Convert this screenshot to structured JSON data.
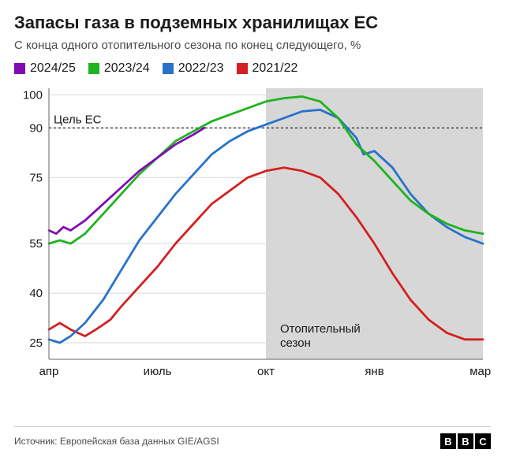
{
  "title": "Запасы газа в подземных хранилищах ЕС",
  "subtitle": "С конца одного отопительного сезона по конец следующего, %",
  "source": "Источник: Европейская база данных GIE/AGSI",
  "logo_letters": [
    "B",
    "B",
    "C"
  ],
  "legend": [
    {
      "label": "2024/25",
      "color": "#800bb5"
    },
    {
      "label": "2023/24",
      "color": "#1fb31f"
    },
    {
      "label": "2022/23",
      "color": "#2872cc"
    },
    {
      "label": "2021/22",
      "color": "#d42020"
    }
  ],
  "chart": {
    "type": "line",
    "x_domain": [
      0,
      12
    ],
    "ylim": [
      20,
      102
    ],
    "yticks": [
      25,
      40,
      55,
      75,
      90,
      100
    ],
    "ytick_labels": [
      "25",
      "40",
      "55",
      "75",
      "90",
      "100"
    ],
    "xticks": [
      0,
      3,
      6,
      9,
      12
    ],
    "xtick_labels": [
      "апр",
      "июль",
      "окт",
      "янв",
      "март"
    ],
    "target_value": 90,
    "target_label": "Цель ЕС",
    "heating_season": {
      "start": 6,
      "end": 12,
      "label": "Отопительный\nсезон",
      "fill": "#d7d7d7"
    },
    "background_color": "#ffffff",
    "grid_color": "#d9d9d9",
    "line_width": 2.8,
    "series": [
      {
        "name": "2021/22",
        "color": "#d42020",
        "points": [
          [
            0,
            29
          ],
          [
            0.3,
            31
          ],
          [
            0.6,
            29
          ],
          [
            1.0,
            27
          ],
          [
            1.3,
            29
          ],
          [
            1.7,
            32
          ],
          [
            2.0,
            36
          ],
          [
            2.5,
            42
          ],
          [
            3.0,
            48
          ],
          [
            3.5,
            55
          ],
          [
            4.0,
            61
          ],
          [
            4.5,
            67
          ],
          [
            5.0,
            71
          ],
          [
            5.5,
            75
          ],
          [
            6.0,
            77
          ],
          [
            6.5,
            78
          ],
          [
            7.0,
            77
          ],
          [
            7.5,
            75
          ],
          [
            8.0,
            70
          ],
          [
            8.5,
            63
          ],
          [
            9.0,
            55
          ],
          [
            9.5,
            46
          ],
          [
            10.0,
            38
          ],
          [
            10.5,
            32
          ],
          [
            11.0,
            28
          ],
          [
            11.5,
            26
          ],
          [
            12.0,
            26
          ]
        ]
      },
      {
        "name": "2022/23",
        "color": "#2872cc",
        "points": [
          [
            0,
            26
          ],
          [
            0.3,
            25
          ],
          [
            0.6,
            27
          ],
          [
            1.0,
            31
          ],
          [
            1.5,
            38
          ],
          [
            2.0,
            47
          ],
          [
            2.5,
            56
          ],
          [
            3.0,
            63
          ],
          [
            3.5,
            70
          ],
          [
            4.0,
            76
          ],
          [
            4.5,
            82
          ],
          [
            5.0,
            86
          ],
          [
            5.5,
            89
          ],
          [
            6.0,
            91
          ],
          [
            6.5,
            93
          ],
          [
            7.0,
            95
          ],
          [
            7.5,
            95.5
          ],
          [
            8.0,
            93
          ],
          [
            8.5,
            87
          ],
          [
            8.7,
            82
          ],
          [
            9.0,
            83
          ],
          [
            9.5,
            78
          ],
          [
            10.0,
            70
          ],
          [
            10.5,
            64
          ],
          [
            11.0,
            60
          ],
          [
            11.5,
            57
          ],
          [
            12.0,
            55
          ]
        ]
      },
      {
        "name": "2023/24",
        "color": "#1fb31f",
        "points": [
          [
            0,
            55
          ],
          [
            0.3,
            56
          ],
          [
            0.6,
            55
          ],
          [
            1.0,
            58
          ],
          [
            1.5,
            64
          ],
          [
            2.0,
            70
          ],
          [
            2.5,
            76
          ],
          [
            3.0,
            81
          ],
          [
            3.5,
            86
          ],
          [
            4.0,
            89
          ],
          [
            4.5,
            92
          ],
          [
            5.0,
            94
          ],
          [
            5.5,
            96
          ],
          [
            6.0,
            98
          ],
          [
            6.5,
            99
          ],
          [
            7.0,
            99.5
          ],
          [
            7.5,
            98
          ],
          [
            8.0,
            93
          ],
          [
            8.5,
            85
          ],
          [
            9.0,
            80
          ],
          [
            9.5,
            74
          ],
          [
            10.0,
            68
          ],
          [
            10.5,
            64
          ],
          [
            11.0,
            61
          ],
          [
            11.5,
            59
          ],
          [
            12.0,
            58
          ]
        ]
      },
      {
        "name": "2024/25",
        "color": "#800bb5",
        "points": [
          [
            0,
            59
          ],
          [
            0.2,
            58
          ],
          [
            0.4,
            60
          ],
          [
            0.6,
            59
          ],
          [
            1.0,
            62
          ],
          [
            1.5,
            67
          ],
          [
            2.0,
            72
          ],
          [
            2.5,
            77
          ],
          [
            3.0,
            81
          ],
          [
            3.5,
            85
          ],
          [
            4.0,
            88
          ],
          [
            4.3,
            90
          ]
        ]
      }
    ]
  }
}
